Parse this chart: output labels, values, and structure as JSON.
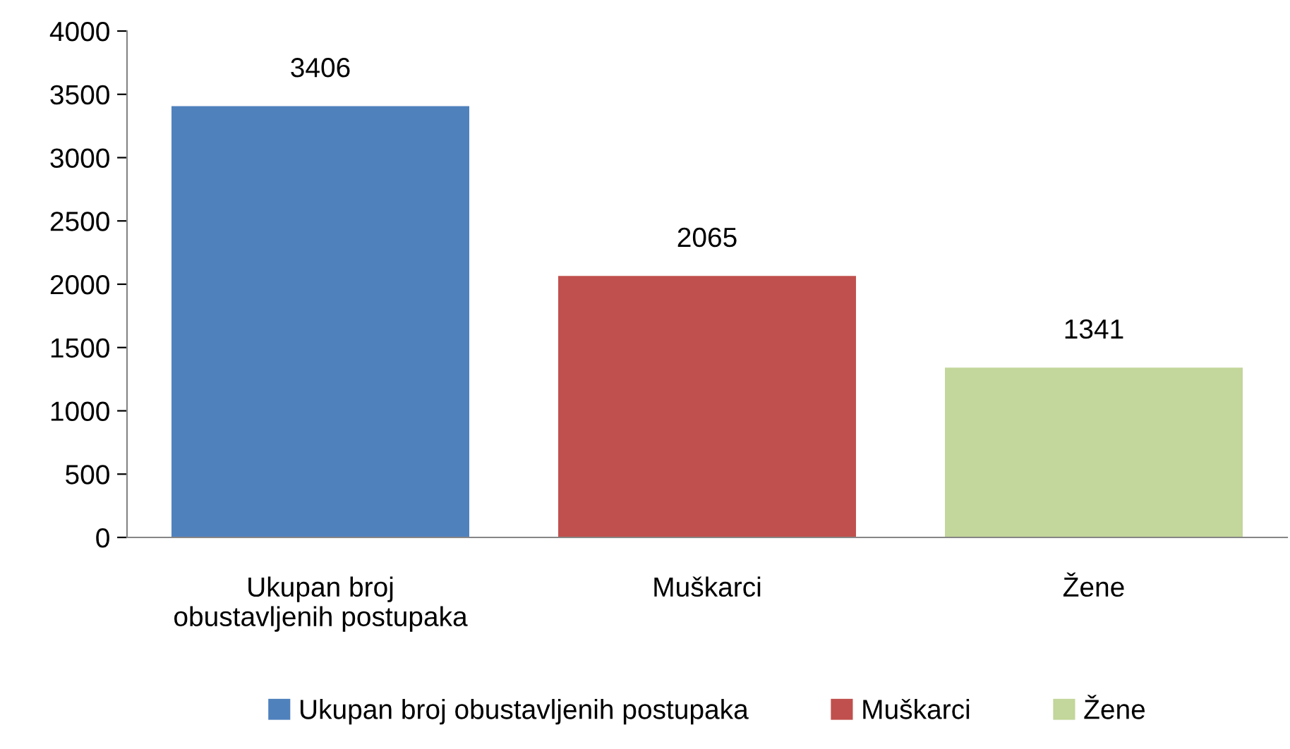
{
  "chart_data": {
    "type": "bar",
    "categories": [
      "Ukupan broj obustavljenih postupaka",
      "Muškarci",
      "Žene"
    ],
    "series": [
      {
        "name": "Ukupan broj obustavljenih postupaka",
        "color": "#4f81bd",
        "values": [
          3406,
          null,
          null
        ]
      },
      {
        "name": "Muškarci",
        "color": "#c0504d",
        "values": [
          null,
          2065,
          null
        ]
      },
      {
        "name": "Žene",
        "color": "#c3d69b",
        "values": [
          null,
          null,
          1341
        ]
      }
    ],
    "ylim": [
      0,
      4000
    ],
    "yticks": [
      0,
      500,
      1000,
      1500,
      2000,
      2500,
      3000,
      3500,
      4000
    ],
    "data_labels": true,
    "grid": false,
    "legend": "bottom"
  }
}
